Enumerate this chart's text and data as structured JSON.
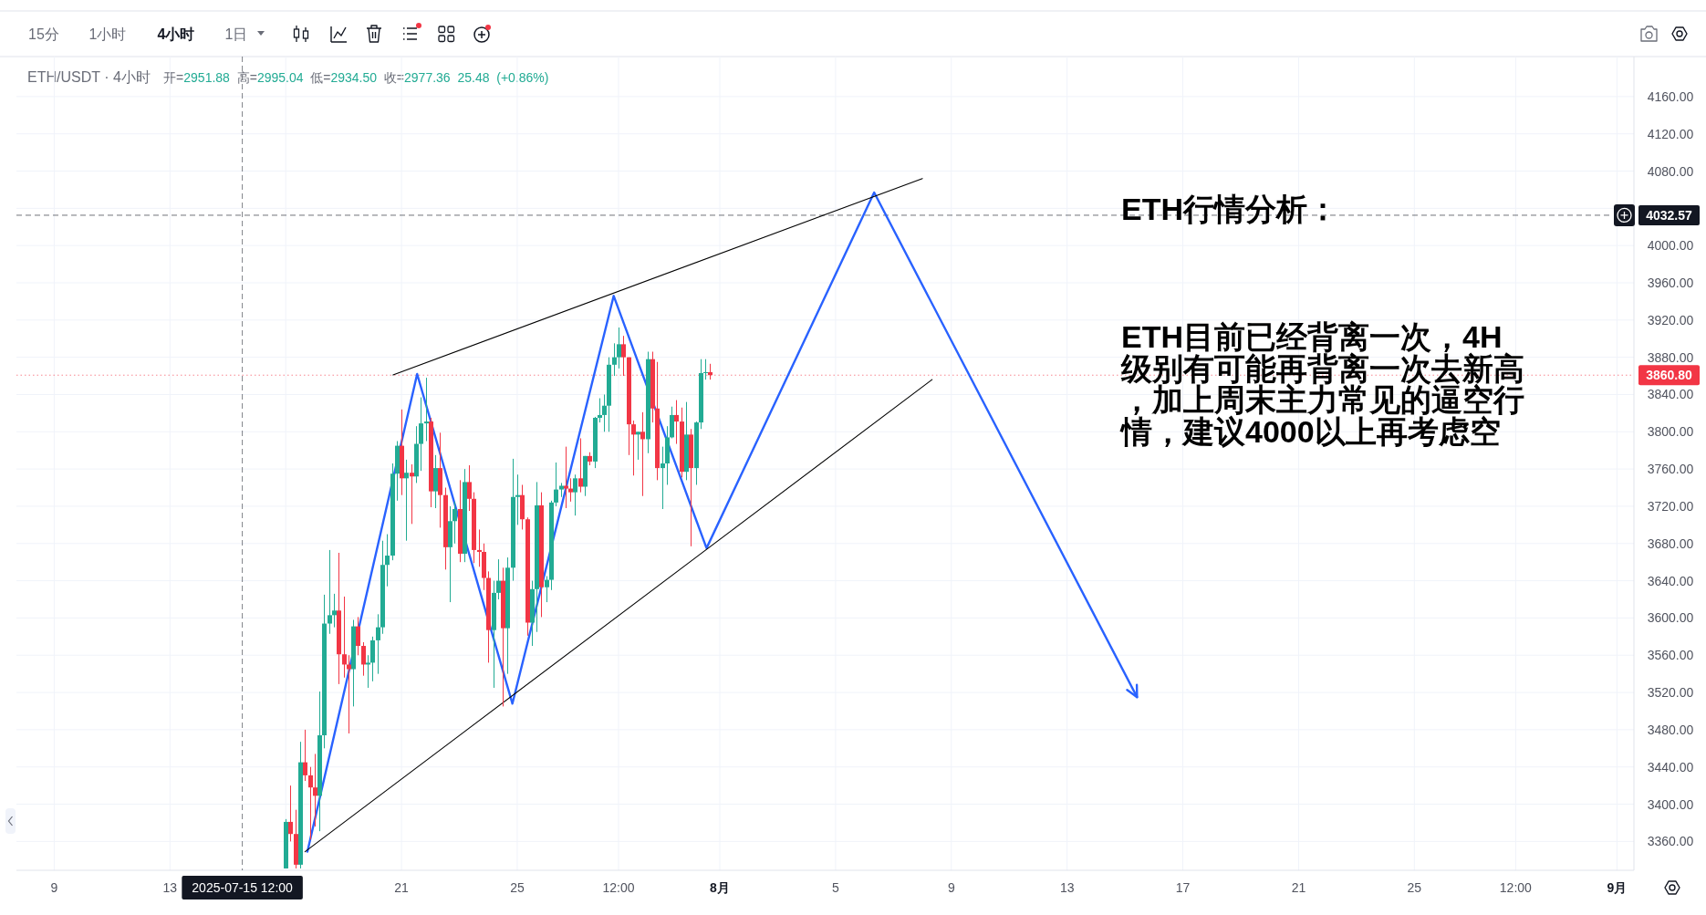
{
  "chart_data": {
    "type": "candlestick",
    "title": "ETH/USDT · 4小时",
    "subtitle": "开=2951.88 高=2995.04 低=2934.50 收=2977.36 25.48 (+0.86%)",
    "x": [
      "2025-07-17T00:00",
      "2025-07-17T04:00",
      "2025-07-17T08:00",
      "2025-07-17T12:00",
      "2025-07-17T16:00",
      "2025-07-17T20:00",
      "2025-07-18T00:00",
      "2025-07-18T04:00",
      "2025-07-18T08:00",
      "2025-07-18T12:00",
      "2025-07-18T16:00",
      "2025-07-18T20:00",
      "2025-07-19T00:00",
      "2025-07-19T04:00",
      "2025-07-19T08:00",
      "2025-07-19T12:00",
      "2025-07-19T16:00",
      "2025-07-19T20:00",
      "2025-07-20T00:00",
      "2025-07-20T04:00",
      "2025-07-20T08:00",
      "2025-07-20T12:00",
      "2025-07-20T16:00",
      "2025-07-20T20:00",
      "2025-07-21T00:00",
      "2025-07-21T04:00",
      "2025-07-21T08:00",
      "2025-07-21T12:00",
      "2025-07-21T16:00",
      "2025-07-21T20:00",
      "2025-07-22T00:00",
      "2025-07-22T04:00",
      "2025-07-22T08:00",
      "2025-07-22T12:00",
      "2025-07-22T16:00",
      "2025-07-22T20:00",
      "2025-07-23T00:00",
      "2025-07-23T04:00",
      "2025-07-23T08:00",
      "2025-07-23T12:00",
      "2025-07-23T16:00",
      "2025-07-23T20:00",
      "2025-07-24T00:00",
      "2025-07-24T04:00",
      "2025-07-24T08:00",
      "2025-07-24T12:00",
      "2025-07-24T16:00",
      "2025-07-24T20:00",
      "2025-07-25T00:00",
      "2025-07-25T04:00",
      "2025-07-25T08:00",
      "2025-07-25T12:00",
      "2025-07-25T16:00",
      "2025-07-25T20:00",
      "2025-07-26T00:00",
      "2025-07-26T04:00",
      "2025-07-26T08:00",
      "2025-07-26T12:00",
      "2025-07-26T16:00",
      "2025-07-26T20:00",
      "2025-07-27T00:00",
      "2025-07-27T04:00",
      "2025-07-27T08:00",
      "2025-07-27T12:00",
      "2025-07-27T16:00",
      "2025-07-27T20:00",
      "2025-07-28T00:00",
      "2025-07-28T04:00",
      "2025-07-28T08:00",
      "2025-07-28T12:00",
      "2025-07-28T16:00",
      "2025-07-28T20:00",
      "2025-07-29T00:00",
      "2025-07-29T04:00",
      "2025-07-29T08:00",
      "2025-07-29T12:00",
      "2025-07-29T16:00",
      "2025-07-29T20:00",
      "2025-07-30T00:00",
      "2025-07-30T04:00",
      "2025-07-30T08:00",
      "2025-07-30T12:00",
      "2025-07-30T16:00",
      "2025-07-30T20:00",
      "2025-07-31T00:00",
      "2025-07-31T04:00",
      "2025-07-31T08:00",
      "2025-07-31T12:00",
      "2025-07-31T16:00"
    ],
    "ohlc": [
      [
        3331,
        3384,
        3331,
        3381
      ],
      [
        3381,
        3420,
        3360,
        3368
      ],
      [
        3368,
        3394,
        3331,
        3335
      ],
      [
        3335,
        3467,
        3331,
        3445
      ],
      [
        3445,
        3480,
        3425,
        3431
      ],
      [
        3431,
        3440,
        3362,
        3418
      ],
      [
        3418,
        3454,
        3376,
        3409
      ],
      [
        3409,
        3521,
        3371,
        3474
      ],
      [
        3474,
        3625,
        3460,
        3594
      ],
      [
        3594,
        3673,
        3583,
        3603
      ],
      [
        3603,
        3626,
        3590,
        3608
      ],
      [
        3608,
        3670,
        3529,
        3561
      ],
      [
        3561,
        3623,
        3536,
        3550
      ],
      [
        3550,
        3560,
        3476,
        3545
      ],
      [
        3545,
        3598,
        3505,
        3591
      ],
      [
        3591,
        3601,
        3560,
        3570
      ],
      [
        3570,
        3574,
        3538,
        3550
      ],
      [
        3550,
        3560,
        3525,
        3552
      ],
      [
        3552,
        3580,
        3532,
        3576
      ],
      [
        3576,
        3604,
        3540,
        3590
      ],
      [
        3590,
        3683,
        3583,
        3657
      ],
      [
        3657,
        3690,
        3634,
        3667
      ],
      [
        3667,
        3766,
        3662,
        3755
      ],
      [
        3755,
        3790,
        3726,
        3785
      ],
      [
        3785,
        3824,
        3732,
        3750
      ],
      [
        3750,
        3770,
        3683,
        3756
      ],
      [
        3756,
        3765,
        3701,
        3752
      ],
      [
        3752,
        3806,
        3745,
        3787
      ],
      [
        3787,
        3837,
        3758,
        3809
      ],
      [
        3809,
        3858,
        3790,
        3811
      ],
      [
        3811,
        3815,
        3719,
        3736
      ],
      [
        3736,
        3775,
        3718,
        3761
      ],
      [
        3761,
        3799,
        3697,
        3732
      ],
      [
        3732,
        3740,
        3652,
        3676
      ],
      [
        3676,
        3720,
        3617,
        3704
      ],
      [
        3704,
        3725,
        3680,
        3717
      ],
      [
        3717,
        3748,
        3660,
        3669
      ],
      [
        3669,
        3760,
        3660,
        3746
      ],
      [
        3746,
        3764,
        3715,
        3728
      ],
      [
        3728,
        3735,
        3659,
        3673
      ],
      [
        3673,
        3695,
        3655,
        3671
      ],
      [
        3671,
        3680,
        3630,
        3643
      ],
      [
        3643,
        3650,
        3552,
        3587
      ],
      [
        3587,
        3640,
        3525,
        3627
      ],
      [
        3627,
        3663,
        3620,
        3640
      ],
      [
        3640,
        3654,
        3505,
        3589
      ],
      [
        3589,
        3665,
        3540,
        3654
      ],
      [
        3654,
        3771,
        3640,
        3730
      ],
      [
        3730,
        3754,
        3700,
        3732
      ],
      [
        3732,
        3743,
        3695,
        3706
      ],
      [
        3706,
        3708,
        3581,
        3595
      ],
      [
        3595,
        3640,
        3570,
        3631
      ],
      [
        3631,
        3746,
        3585,
        3721
      ],
      [
        3721,
        3735,
        3601,
        3633
      ],
      [
        3633,
        3645,
        3617,
        3641
      ],
      [
        3641,
        3726,
        3630,
        3724
      ],
      [
        3724,
        3767,
        3720,
        3738
      ],
      [
        3738,
        3745,
        3730,
        3742
      ],
      [
        3742,
        3784,
        3718,
        3739
      ],
      [
        3739,
        3750,
        3725,
        3735
      ],
      [
        3735,
        3754,
        3710,
        3750
      ],
      [
        3750,
        3793,
        3735,
        3741
      ],
      [
        3741,
        3774,
        3731,
        3774
      ],
      [
        3774,
        3778,
        3764,
        3768
      ],
      [
        3768,
        3816,
        3761,
        3815
      ],
      [
        3815,
        3836,
        3810,
        3818
      ],
      [
        3818,
        3840,
        3800,
        3828
      ],
      [
        3828,
        3880,
        3800,
        3872
      ],
      [
        3872,
        3895,
        3860,
        3880
      ],
      [
        3880,
        3912,
        3868,
        3894
      ],
      [
        3894,
        3903,
        3860,
        3880
      ],
      [
        3880,
        3880,
        3775,
        3808
      ],
      [
        3808,
        3812,
        3753,
        3797
      ],
      [
        3797,
        3800,
        3770,
        3800
      ],
      [
        3800,
        3821,
        3731,
        3792
      ],
      [
        3792,
        3886,
        3777,
        3878
      ],
      [
        3878,
        3886,
        3810,
        3825
      ],
      [
        3825,
        3875,
        3748,
        3761
      ],
      [
        3761,
        3784,
        3717,
        3766
      ],
      [
        3766,
        3806,
        3743,
        3794
      ],
      [
        3794,
        3827,
        3793,
        3818
      ],
      [
        3818,
        3834,
        3787,
        3811
      ],
      [
        3811,
        3826,
        3751,
        3757
      ],
      [
        3757,
        3832,
        3748,
        3797
      ],
      [
        3797,
        3803,
        3677,
        3761
      ],
      [
        3761,
        3811,
        3743,
        3810
      ],
      [
        3810,
        3878,
        3803,
        3863
      ],
      [
        3863,
        3878,
        3856,
        3864
      ],
      [
        3864,
        3873,
        3856,
        3860.8
      ]
    ],
    "colors": [
      "#22ab94",
      "#f23645",
      "#f23645",
      "#22ab94",
      "#f23645",
      "#f23645",
      "#f23645",
      "#22ab94",
      "#22ab94",
      "#22ab94",
      "#22ab94",
      "#f23645",
      "#f23645",
      "#f23645",
      "#22ab94",
      "#f23645",
      "#f23645",
      "#22ab94",
      "#22ab94",
      "#22ab94",
      "#22ab94",
      "#22ab94",
      "#22ab94",
      "#22ab94",
      "#f23645",
      "#22ab94",
      "#f23645",
      "#22ab94",
      "#22ab94",
      "#22ab94",
      "#f23645",
      "#22ab94",
      "#f23645",
      "#f23645",
      "#22ab94",
      "#22ab94",
      "#f23645",
      "#22ab94",
      "#f23645",
      "#f23645",
      "#f23645",
      "#f23645",
      "#f23645",
      "#22ab94",
      "#22ab94",
      "#f23645",
      "#22ab94",
      "#22ab94",
      "#22ab94",
      "#f23645",
      "#f23645",
      "#22ab94",
      "#22ab94",
      "#f23645",
      "#22ab94",
      "#22ab94",
      "#22ab94",
      "#22ab94",
      "#f23645",
      "#f23645",
      "#22ab94",
      "#f23645",
      "#22ab94",
      "#f23645",
      "#22ab94",
      "#22ab94",
      "#22ab94",
      "#22ab94",
      "#22ab94",
      "#22ab94",
      "#f23645",
      "#f23645",
      "#f23645",
      "#22ab94",
      "#f23645",
      "#22ab94",
      "#f23645",
      "#f23645",
      "#22ab94",
      "#22ab94",
      "#22ab94",
      "#f23645",
      "#f23645",
      "#22ab94",
      "#f23645",
      "#22ab94",
      "#22ab94",
      "#22ab94",
      "#f23645"
    ],
    "series": [
      {
        "type": "line",
        "x": [
          "2025-07-17T18:00",
          "2025-07-21T13:00",
          "2025-07-24T20:00",
          "2025-07-28T08:00",
          "2025-07-31T13:00",
          "2025-08-06T08:00",
          "2025-08-15T10:00"
        ],
        "values": [
          3349,
          3862,
          3508,
          3946,
          3675,
          4057,
          3515
        ],
        "color": "#2962ff"
      },
      {
        "type": "line",
        "x": [
          "2025-07-20T17:00",
          "2025-08-08T00:00"
        ],
        "values": [
          3861,
          4072
        ],
        "color": "#000000"
      },
      {
        "type": "line",
        "x": [
          "2025-07-17T16:00",
          "2025-08-08T08:00"
        ],
        "values": [
          3349,
          3856
        ],
        "color": "#000000"
      }
    ],
    "xlim": [
      "2025-07-07T16:40",
      "2025-09-01T14:05"
    ],
    "xticks": [
      {
        "value": "2025-07-09",
        "label": "9"
      },
      {
        "value": "2025-07-13",
        "label": "13"
      },
      {
        "value": "2025-07-17",
        "label": null
      },
      {
        "value": "2025-07-21",
        "label": "21"
      },
      {
        "value": "2025-07-25",
        "label": "25"
      },
      {
        "value": "2025-07-28T12:00",
        "label": "12:00"
      },
      {
        "value": "2025-08-01",
        "label": "8月"
      },
      {
        "value": "2025-08-05",
        "label": "5"
      },
      {
        "value": "2025-08-09",
        "label": "9"
      },
      {
        "value": "2025-08-13",
        "label": "13"
      },
      {
        "value": "2025-08-17",
        "label": "17"
      },
      {
        "value": "2025-08-21",
        "label": "21"
      },
      {
        "value": "2025-08-25",
        "label": "25"
      },
      {
        "value": "2025-08-28T12:00",
        "label": "12:00"
      },
      {
        "value": "2025-09-01",
        "label": "9月"
      }
    ],
    "ylim": [
      3329,
      4203
    ],
    "yticks": [
      {
        "value": 3360,
        "label": "3360.00"
      },
      {
        "value": 3400,
        "label": "3400.00"
      },
      {
        "value": 3440,
        "label": "3440.00"
      },
      {
        "value": 3480,
        "label": "3480.00"
      },
      {
        "value": 3520,
        "label": "3520.00"
      },
      {
        "value": 3560,
        "label": "3560.00"
      },
      {
        "value": 3600,
        "label": "3600.00"
      },
      {
        "value": 3640,
        "label": "3640.00"
      },
      {
        "value": 3680,
        "label": "3680.00"
      },
      {
        "value": 3720,
        "label": "3720.00"
      },
      {
        "value": 3760,
        "label": "3760.00"
      },
      {
        "value": 3800,
        "label": "3800.00"
      },
      {
        "value": 3840,
        "label": "3840.00"
      },
      {
        "value": 3880,
        "label": "3880.00"
      },
      {
        "value": 3920,
        "label": "3920.00"
      },
      {
        "value": 3960,
        "label": "3960.00"
      },
      {
        "value": 4000,
        "label": "4000.00"
      },
      {
        "value": 4040,
        "label": null
      },
      {
        "value": 4080,
        "label": "4080.00"
      },
      {
        "value": 4120,
        "label": "4120.00"
      },
      {
        "value": 4160,
        "label": "4160.00"
      }
    ],
    "grid": true,
    "ref_lines": [
      {
        "axis": "x",
        "value": "2025-07-15T12:00",
        "label": "2025-07-15 12:00",
        "color": "#131722",
        "line_style": "dashed"
      },
      {
        "axis": "y",
        "value": 4032.57,
        "label": "4032.57",
        "color": "#131722",
        "line_style": "dashed"
      },
      {
        "axis": "y",
        "value": 3860.8,
        "label": "3860.80",
        "color": "#f23645",
        "line_style": "dotted"
      }
    ],
    "annotations": [
      "ETH行情分析：",
      "ETH目前已经背离一次，4H级别有可能再背离一次去新高，加上周末主力常见的逼空行情，建议4000以上再考虑空",
      "15分",
      "1小时",
      "4小时",
      "1日"
    ]
  }
}
